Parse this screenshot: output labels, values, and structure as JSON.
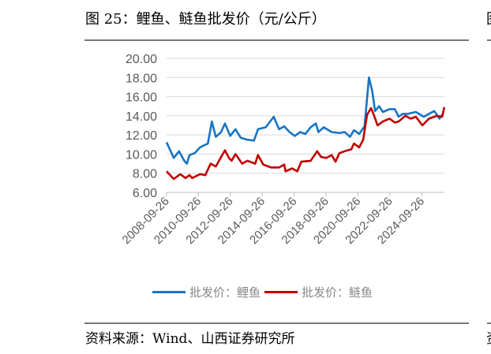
{
  "title": "图 25：鲤鱼、鲢鱼批发价（元/公斤）",
  "source": "资料来源：Wind、山西证券研究所",
  "cut_title": "图",
  "cut_source": "资",
  "chart_data": {
    "type": "line",
    "title": "鲤鱼、鲢鱼批发价（元/公斤）",
    "xlabel": "",
    "ylabel": "",
    "ylim": [
      6,
      20
    ],
    "xlim": [
      2008.73,
      2026.15
    ],
    "yticks": [
      "6.00",
      "8.00",
      "10.00",
      "12.00",
      "14.00",
      "16.00",
      "18.00",
      "20.00"
    ],
    "xticks": [
      "2008-09-26",
      "2010-09-26",
      "2012-09-26",
      "2014-09-26",
      "2016-09-26",
      "2018-09-26",
      "2020-09-26",
      "2022-09-26",
      "2024-09-26"
    ],
    "xtick_values": [
      2008.73,
      2010.73,
      2012.73,
      2014.73,
      2016.73,
      2018.73,
      2020.73,
      2022.73,
      2024.73
    ],
    "grid": true,
    "legend_position": "bottom",
    "series": [
      {
        "name": "批发价：鲤鱼",
        "color": "#1874c4",
        "points": [
          [
            2008.73,
            11.24
          ],
          [
            2009.18,
            9.6
          ],
          [
            2009.51,
            10.3
          ],
          [
            2009.84,
            9.3
          ],
          [
            2010.0,
            9.0
          ],
          [
            2010.17,
            9.9
          ],
          [
            2010.5,
            10.1
          ],
          [
            2010.83,
            10.7
          ],
          [
            2011.32,
            11.1
          ],
          [
            2011.57,
            13.4
          ],
          [
            2011.82,
            11.8
          ],
          [
            2012.15,
            12.3
          ],
          [
            2012.39,
            13.2
          ],
          [
            2012.72,
            11.9
          ],
          [
            2013.05,
            12.6
          ],
          [
            2013.38,
            11.7
          ],
          [
            2013.8,
            11.5
          ],
          [
            2014.21,
            11.4
          ],
          [
            2014.46,
            12.6
          ],
          [
            2014.95,
            12.8
          ],
          [
            2015.45,
            13.9
          ],
          [
            2015.78,
            12.6
          ],
          [
            2016.11,
            12.9
          ],
          [
            2016.44,
            12.3
          ],
          [
            2016.77,
            11.9
          ],
          [
            2017.1,
            12.3
          ],
          [
            2017.43,
            12.1
          ],
          [
            2017.76,
            12.8
          ],
          [
            2018.09,
            13.2
          ],
          [
            2018.25,
            12.3
          ],
          [
            2018.58,
            12.8
          ],
          [
            2019.08,
            12.3
          ],
          [
            2019.57,
            12.2
          ],
          [
            2019.9,
            12.3
          ],
          [
            2020.23,
            11.8
          ],
          [
            2020.48,
            12.5
          ],
          [
            2020.81,
            12.1
          ],
          [
            2021.14,
            12.9
          ],
          [
            2021.42,
            18.0
          ],
          [
            2021.63,
            16.5
          ],
          [
            2021.8,
            14.5
          ],
          [
            2022.05,
            15.0
          ],
          [
            2022.29,
            14.4
          ],
          [
            2022.71,
            14.7
          ],
          [
            2023.04,
            14.7
          ],
          [
            2023.28,
            13.9
          ],
          [
            2023.53,
            14.2
          ],
          [
            2023.86,
            14.2
          ],
          [
            2024.36,
            14.4
          ],
          [
            2024.85,
            13.9
          ],
          [
            2025.51,
            14.5
          ],
          [
            2025.84,
            13.7
          ],
          [
            2026.09,
            14.3
          ]
        ]
      },
      {
        "name": "批发价：鲢鱼",
        "color": "#c00000",
        "points": [
          [
            2008.73,
            8.2
          ],
          [
            2009.18,
            7.4
          ],
          [
            2009.59,
            7.9
          ],
          [
            2009.92,
            7.5
          ],
          [
            2010.17,
            7.8
          ],
          [
            2010.33,
            7.5
          ],
          [
            2010.83,
            7.9
          ],
          [
            2011.16,
            7.8
          ],
          [
            2011.49,
            9.0
          ],
          [
            2011.82,
            8.7
          ],
          [
            2012.15,
            9.7
          ],
          [
            2012.39,
            10.4
          ],
          [
            2012.64,
            9.6
          ],
          [
            2012.81,
            9.3
          ],
          [
            2013.05,
            10.0
          ],
          [
            2013.47,
            9.0
          ],
          [
            2013.8,
            9.3
          ],
          [
            2014.29,
            9.0
          ],
          [
            2014.46,
            9.9
          ],
          [
            2014.79,
            8.9
          ],
          [
            2015.28,
            8.6
          ],
          [
            2015.78,
            8.6
          ],
          [
            2016.11,
            8.9
          ],
          [
            2016.19,
            8.2
          ],
          [
            2016.6,
            8.5
          ],
          [
            2016.93,
            8.2
          ],
          [
            2017.18,
            9.2
          ],
          [
            2017.76,
            9.3
          ],
          [
            2018.17,
            10.3
          ],
          [
            2018.42,
            9.7
          ],
          [
            2018.75,
            9.6
          ],
          [
            2019.08,
            9.9
          ],
          [
            2019.32,
            9.2
          ],
          [
            2019.57,
            10.1
          ],
          [
            2019.9,
            10.3
          ],
          [
            2020.31,
            10.5
          ],
          [
            2020.48,
            11.1
          ],
          [
            2020.81,
            10.7
          ],
          [
            2021.06,
            11.5
          ],
          [
            2021.3,
            14.1
          ],
          [
            2021.55,
            14.8
          ],
          [
            2021.72,
            14.1
          ],
          [
            2021.96,
            13.0
          ],
          [
            2022.29,
            13.4
          ],
          [
            2022.71,
            13.7
          ],
          [
            2023.04,
            13.3
          ],
          [
            2023.28,
            13.4
          ],
          [
            2023.7,
            14.0
          ],
          [
            2024.03,
            13.7
          ],
          [
            2024.36,
            13.9
          ],
          [
            2024.77,
            13.0
          ],
          [
            2025.18,
            13.7
          ],
          [
            2025.68,
            14.0
          ],
          [
            2026.01,
            13.9
          ],
          [
            2026.14,
            14.9
          ]
        ]
      }
    ]
  }
}
